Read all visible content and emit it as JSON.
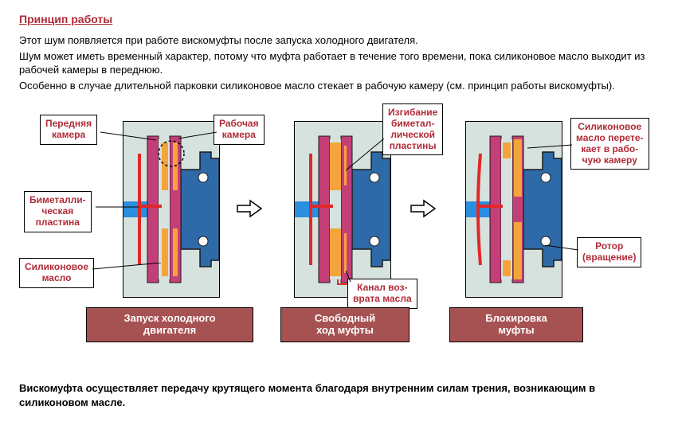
{
  "title": "Принцип работы",
  "paragraphs": [
    "Этот шум появляется при работе вискомуфты после запуска холодного двигателя.",
    "Шум может иметь временный характер, потому что муфта работает в течение того времени, пока силиконовое масло выходит из рабочей камеры в переднюю.",
    "Особенно в случае длительной парковки силиконовое масло стекает в рабочую камеру (см. принцип работы вискомуфты)."
  ],
  "footer": "Вискомуфта осуществляет передачу крутящего момента благодаря внутренним силам трения, возникающим в силиконовом масле.",
  "colors": {
    "accent": "#b02b37",
    "captionBg": "#a75252",
    "panelBg": "#d6e2de",
    "shaftBlue": "#2a8fe0",
    "bodyBlue": "#2f6aa8",
    "plateMagenta": "#c43f77",
    "oilOrange": "#f5a33c",
    "rodRed": "#e02828",
    "strokeDark": "#1a1a1a"
  },
  "captions": {
    "p1": "Запуск холодного\nдвигателя",
    "p2": "Свободный\nход муфты",
    "p3": "Блокировка\nмуфты"
  },
  "labels": {
    "frontChamber": "Передняя\nкамера",
    "workChamber": "Рабочая\nкамера",
    "bimetalPlate": "Биметалли-\nческая\nпластина",
    "siliconeOil": "Силиконовое\nмасло",
    "bimetalBend": "Изгибание\nбиметал-\nлической\nпластины",
    "returnChannel": "Канал воз-\nврата масла",
    "oilFlows": "Силиконовое\nмасло перете-\nкает в рабо-\nчую камеру",
    "rotor": "Ротор\n(вращение)"
  }
}
